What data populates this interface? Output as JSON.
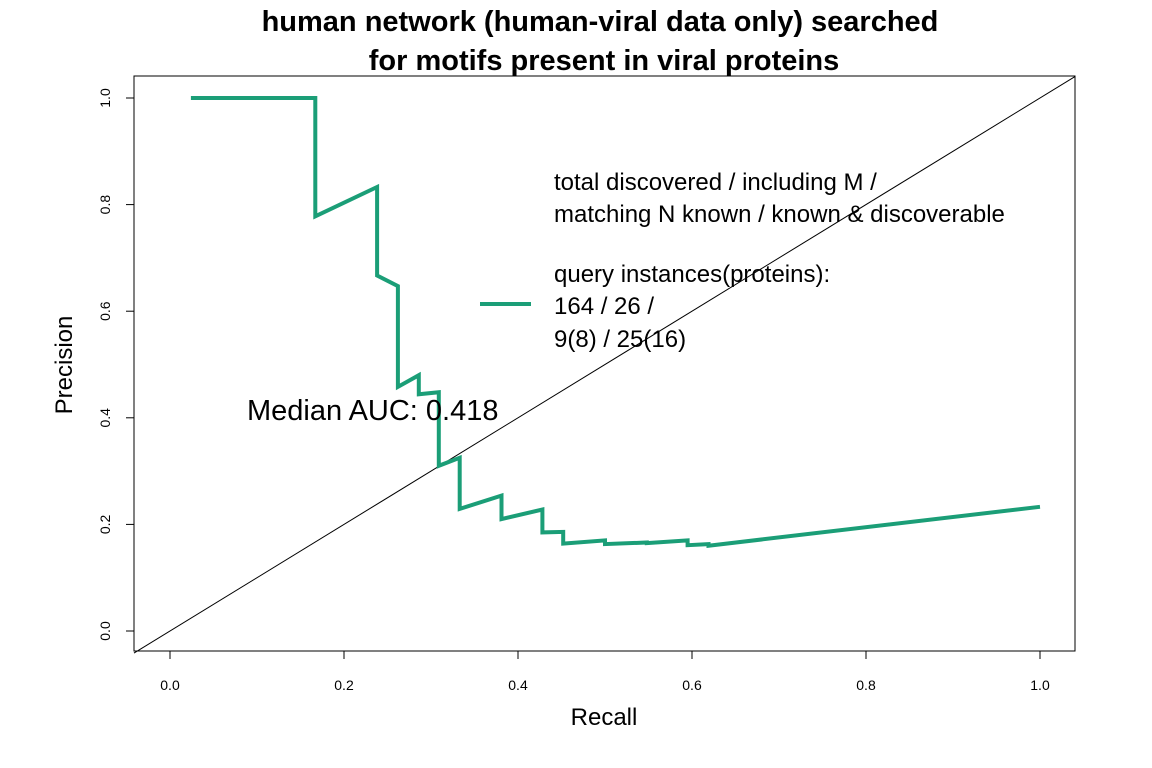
{
  "chart_data": {
    "type": "line",
    "title_lines": [
      "human network (human-viral data only) searched",
      "for motifs present in viral proteins"
    ],
    "xlabel": "Recall",
    "ylabel": "Precision",
    "xlim": [
      0,
      1
    ],
    "ylim": [
      0,
      1
    ],
    "x_ticks": [
      {
        "value": 0.0,
        "label": "0.0"
      },
      {
        "value": 0.2,
        "label": "0.2"
      },
      {
        "value": 0.4,
        "label": "0.4"
      },
      {
        "value": 0.6,
        "label": "0.6"
      },
      {
        "value": 0.8,
        "label": "0.8"
      },
      {
        "value": 1.0,
        "label": "1.0"
      }
    ],
    "y_ticks": [
      {
        "value": 0.0,
        "label": "0.0"
      },
      {
        "value": 0.2,
        "label": "0.2"
      },
      {
        "value": 0.4,
        "label": "0.4"
      },
      {
        "value": 0.6,
        "label": "0.6"
      },
      {
        "value": 0.8,
        "label": "0.8"
      },
      {
        "value": 1.0,
        "label": "1.0"
      }
    ],
    "grid": false,
    "reference_line": {
      "from": [
        0,
        0
      ],
      "to": [
        1,
        1
      ],
      "color": "#000000"
    },
    "series": [
      {
        "color": "#1b9e77",
        "x": [
          0.024,
          0.167,
          0.167,
          0.238,
          0.238,
          0.262,
          0.262,
          0.286,
          0.286,
          0.309,
          0.309,
          0.333,
          0.333,
          0.381,
          0.381,
          0.428,
          0.428,
          0.452,
          0.452,
          0.5,
          0.5,
          0.548,
          0.548,
          0.595,
          0.595,
          0.619,
          0.619,
          1.0
        ],
        "y": [
          1.0,
          1.0,
          0.778,
          0.833,
          0.667,
          0.647,
          0.458,
          0.48,
          0.444,
          0.448,
          0.31,
          0.325,
          0.229,
          0.254,
          0.21,
          0.228,
          0.185,
          0.186,
          0.164,
          0.17,
          0.163,
          0.166,
          0.165,
          0.17,
          0.161,
          0.163,
          0.16,
          0.233
        ]
      }
    ],
    "legend": {
      "placement": "right",
      "header_lines": [
        "total discovered / including M /",
        "matching N known / known & discoverable"
      ],
      "entry_lines": [
        "query instances(proteins):",
        "164 / 26 /",
        "9(8) / 25(16)"
      ]
    },
    "annotation": "Median AUC: 0.418"
  }
}
